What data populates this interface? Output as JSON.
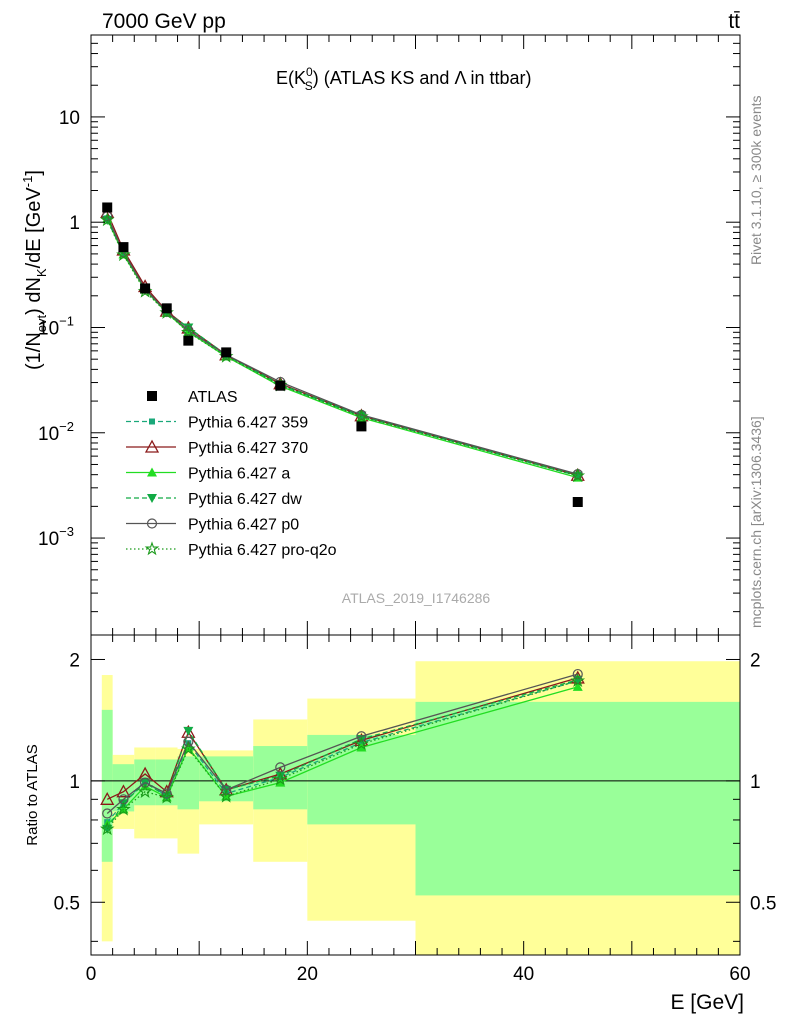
{
  "header": {
    "left": "7000 GeV pp",
    "right": "tt̄"
  },
  "side_text": {
    "rivet": "Rivet 3.1.10, ≥ 300k events",
    "mcplots": "mcplots.cern.ch [arXiv:1306.3436]"
  },
  "plot_title": {
    "main": "E(K",
    "sup": "0",
    "sub": "S",
    "rest": ") (ATLAS KS and Λ in ttbar)"
  },
  "ylabel_main": {
    "p1": "(1/N",
    "sub1": "evt",
    "p2": ") dN",
    "sub2": "K",
    "p3": "/dE [GeV",
    "sup": "-1",
    "p4": "]"
  },
  "watermark": "ATLAS_2019_I1746286",
  "ratio_ylabel": "Ratio to ATLAS",
  "xlabel": "E [GeV]",
  "x_ticks": [
    "0",
    "20",
    "40",
    "60"
  ],
  "main_y_ticks": [
    "10",
    "1",
    "10",
    "10",
    "10"
  ],
  "main_y_tick_exps": [
    "",
    "",
    "−1",
    "−2",
    "−3"
  ],
  "ratio_y_ticks": [
    "2",
    "1",
    "0.5"
  ],
  "colors": {
    "atlas": "#000000",
    "p359": "#1aa87a",
    "p370": "#8b1a1a",
    "pa": "#22dd22",
    "pdw": "#11aa44",
    "pp0": "#555555",
    "pq2o": "#1a9a1a",
    "band_outer": "#ffff99",
    "band_inner": "#99ff99"
  },
  "chart_data": {
    "type": "scatter",
    "x_bins": [
      [
        1,
        2
      ],
      [
        2,
        4
      ],
      [
        4,
        6
      ],
      [
        6,
        8
      ],
      [
        8,
        10
      ],
      [
        10,
        15
      ],
      [
        15,
        20
      ],
      [
        20,
        30
      ],
      [
        30,
        60
      ]
    ],
    "x": [
      1.5,
      3,
      5,
      7,
      9,
      12.5,
      17.5,
      25,
      45
    ],
    "xlim": [
      0,
      60
    ],
    "main_ylim": [
      0.00012,
      60
    ],
    "main_yscale": "log",
    "ratio_ylim": [
      0.37,
      2.3
    ],
    "ratio_yscale": "log",
    "legend_position": "center-left",
    "series": [
      {
        "name": "ATLAS",
        "key": "atlas",
        "marker": "square",
        "line": "none",
        "values": [
          1.38,
          0.58,
          0.235,
          0.152,
          0.075,
          0.058,
          0.028,
          0.0115,
          0.0022
        ]
      },
      {
        "name": "Pythia 6.427 359",
        "key": "p359",
        "marker": "smallsquare",
        "line": "dashed",
        "values": [
          1.09,
          0.51,
          0.235,
          0.139,
          0.093,
          0.054,
          0.0285,
          0.0143,
          0.0039
        ]
      },
      {
        "name": "Pythia 6.427 370",
        "key": "p370",
        "marker": "opentriangle",
        "line": "solid",
        "values": [
          1.24,
          0.545,
          0.245,
          0.143,
          0.099,
          0.055,
          0.0292,
          0.0145,
          0.00395
        ]
      },
      {
        "name": "Pythia 6.427 a",
        "key": "pa",
        "marker": "triangle",
        "line": "solid",
        "values": [
          1.08,
          0.495,
          0.228,
          0.138,
          0.091,
          0.053,
          0.0277,
          0.0139,
          0.00375
        ]
      },
      {
        "name": "Pythia 6.427 dw",
        "key": "pdw",
        "marker": "invtriangle",
        "line": "dashed",
        "values": [
          1.05,
          0.51,
          0.233,
          0.139,
          0.1,
          0.055,
          0.0288,
          0.0146,
          0.00392
        ]
      },
      {
        "name": "Pythia 6.427 p0",
        "key": "pp0",
        "marker": "opencircle",
        "line": "solid",
        "values": [
          1.14,
          0.52,
          0.232,
          0.141,
          0.094,
          0.055,
          0.0304,
          0.0148,
          0.00405
        ]
      },
      {
        "name": "Pythia 6.427 pro-q2o",
        "key": "pq2o",
        "marker": "openstar",
        "line": "dotted",
        "values": [
          1.05,
          0.49,
          0.22,
          0.138,
          0.09,
          0.053,
          0.0283,
          0.0142,
          0.0039
        ]
      }
    ],
    "ratio_series": [
      {
        "key": "p359",
        "values": [
          0.79,
          0.88,
          1.0,
          0.915,
          1.24,
          0.93,
          1.02,
          1.245,
          1.77
        ]
      },
      {
        "key": "p370",
        "values": [
          0.9,
          0.94,
          1.04,
          0.94,
          1.32,
          0.95,
          1.04,
          1.26,
          1.8
        ]
      },
      {
        "key": "pa",
        "values": [
          0.78,
          0.85,
          0.97,
          0.91,
          1.21,
          0.915,
          0.99,
          1.21,
          1.71
        ]
      },
      {
        "key": "pdw",
        "values": [
          0.76,
          0.88,
          0.99,
          0.915,
          1.33,
          0.95,
          1.03,
          1.27,
          1.78
        ]
      },
      {
        "key": "pp0",
        "values": [
          0.83,
          0.9,
          0.99,
          0.93,
          1.25,
          0.95,
          1.08,
          1.29,
          1.84
        ]
      },
      {
        "key": "pq2o",
        "values": [
          0.76,
          0.85,
          0.94,
          0.91,
          1.2,
          0.915,
          1.01,
          1.235,
          1.77
        ]
      }
    ],
    "uncertainty_outer": [
      [
        0.4,
        1.83
      ],
      [
        0.76,
        1.16
      ],
      [
        0.72,
        1.21
      ],
      [
        0.72,
        1.21
      ],
      [
        0.66,
        1.2
      ],
      [
        0.78,
        1.19
      ],
      [
        0.63,
        1.42
      ],
      [
        0.45,
        1.6
      ],
      [
        0.37,
        1.98
      ]
    ],
    "uncertainty_inner": [
      [
        0.63,
        1.5
      ],
      [
        0.84,
        1.1
      ],
      [
        0.87,
        1.13
      ],
      [
        0.87,
        1.13
      ],
      [
        0.85,
        1.15
      ],
      [
        0.89,
        1.15
      ],
      [
        0.85,
        1.22
      ],
      [
        0.78,
        1.3
      ],
      [
        0.52,
        1.57
      ]
    ]
  }
}
